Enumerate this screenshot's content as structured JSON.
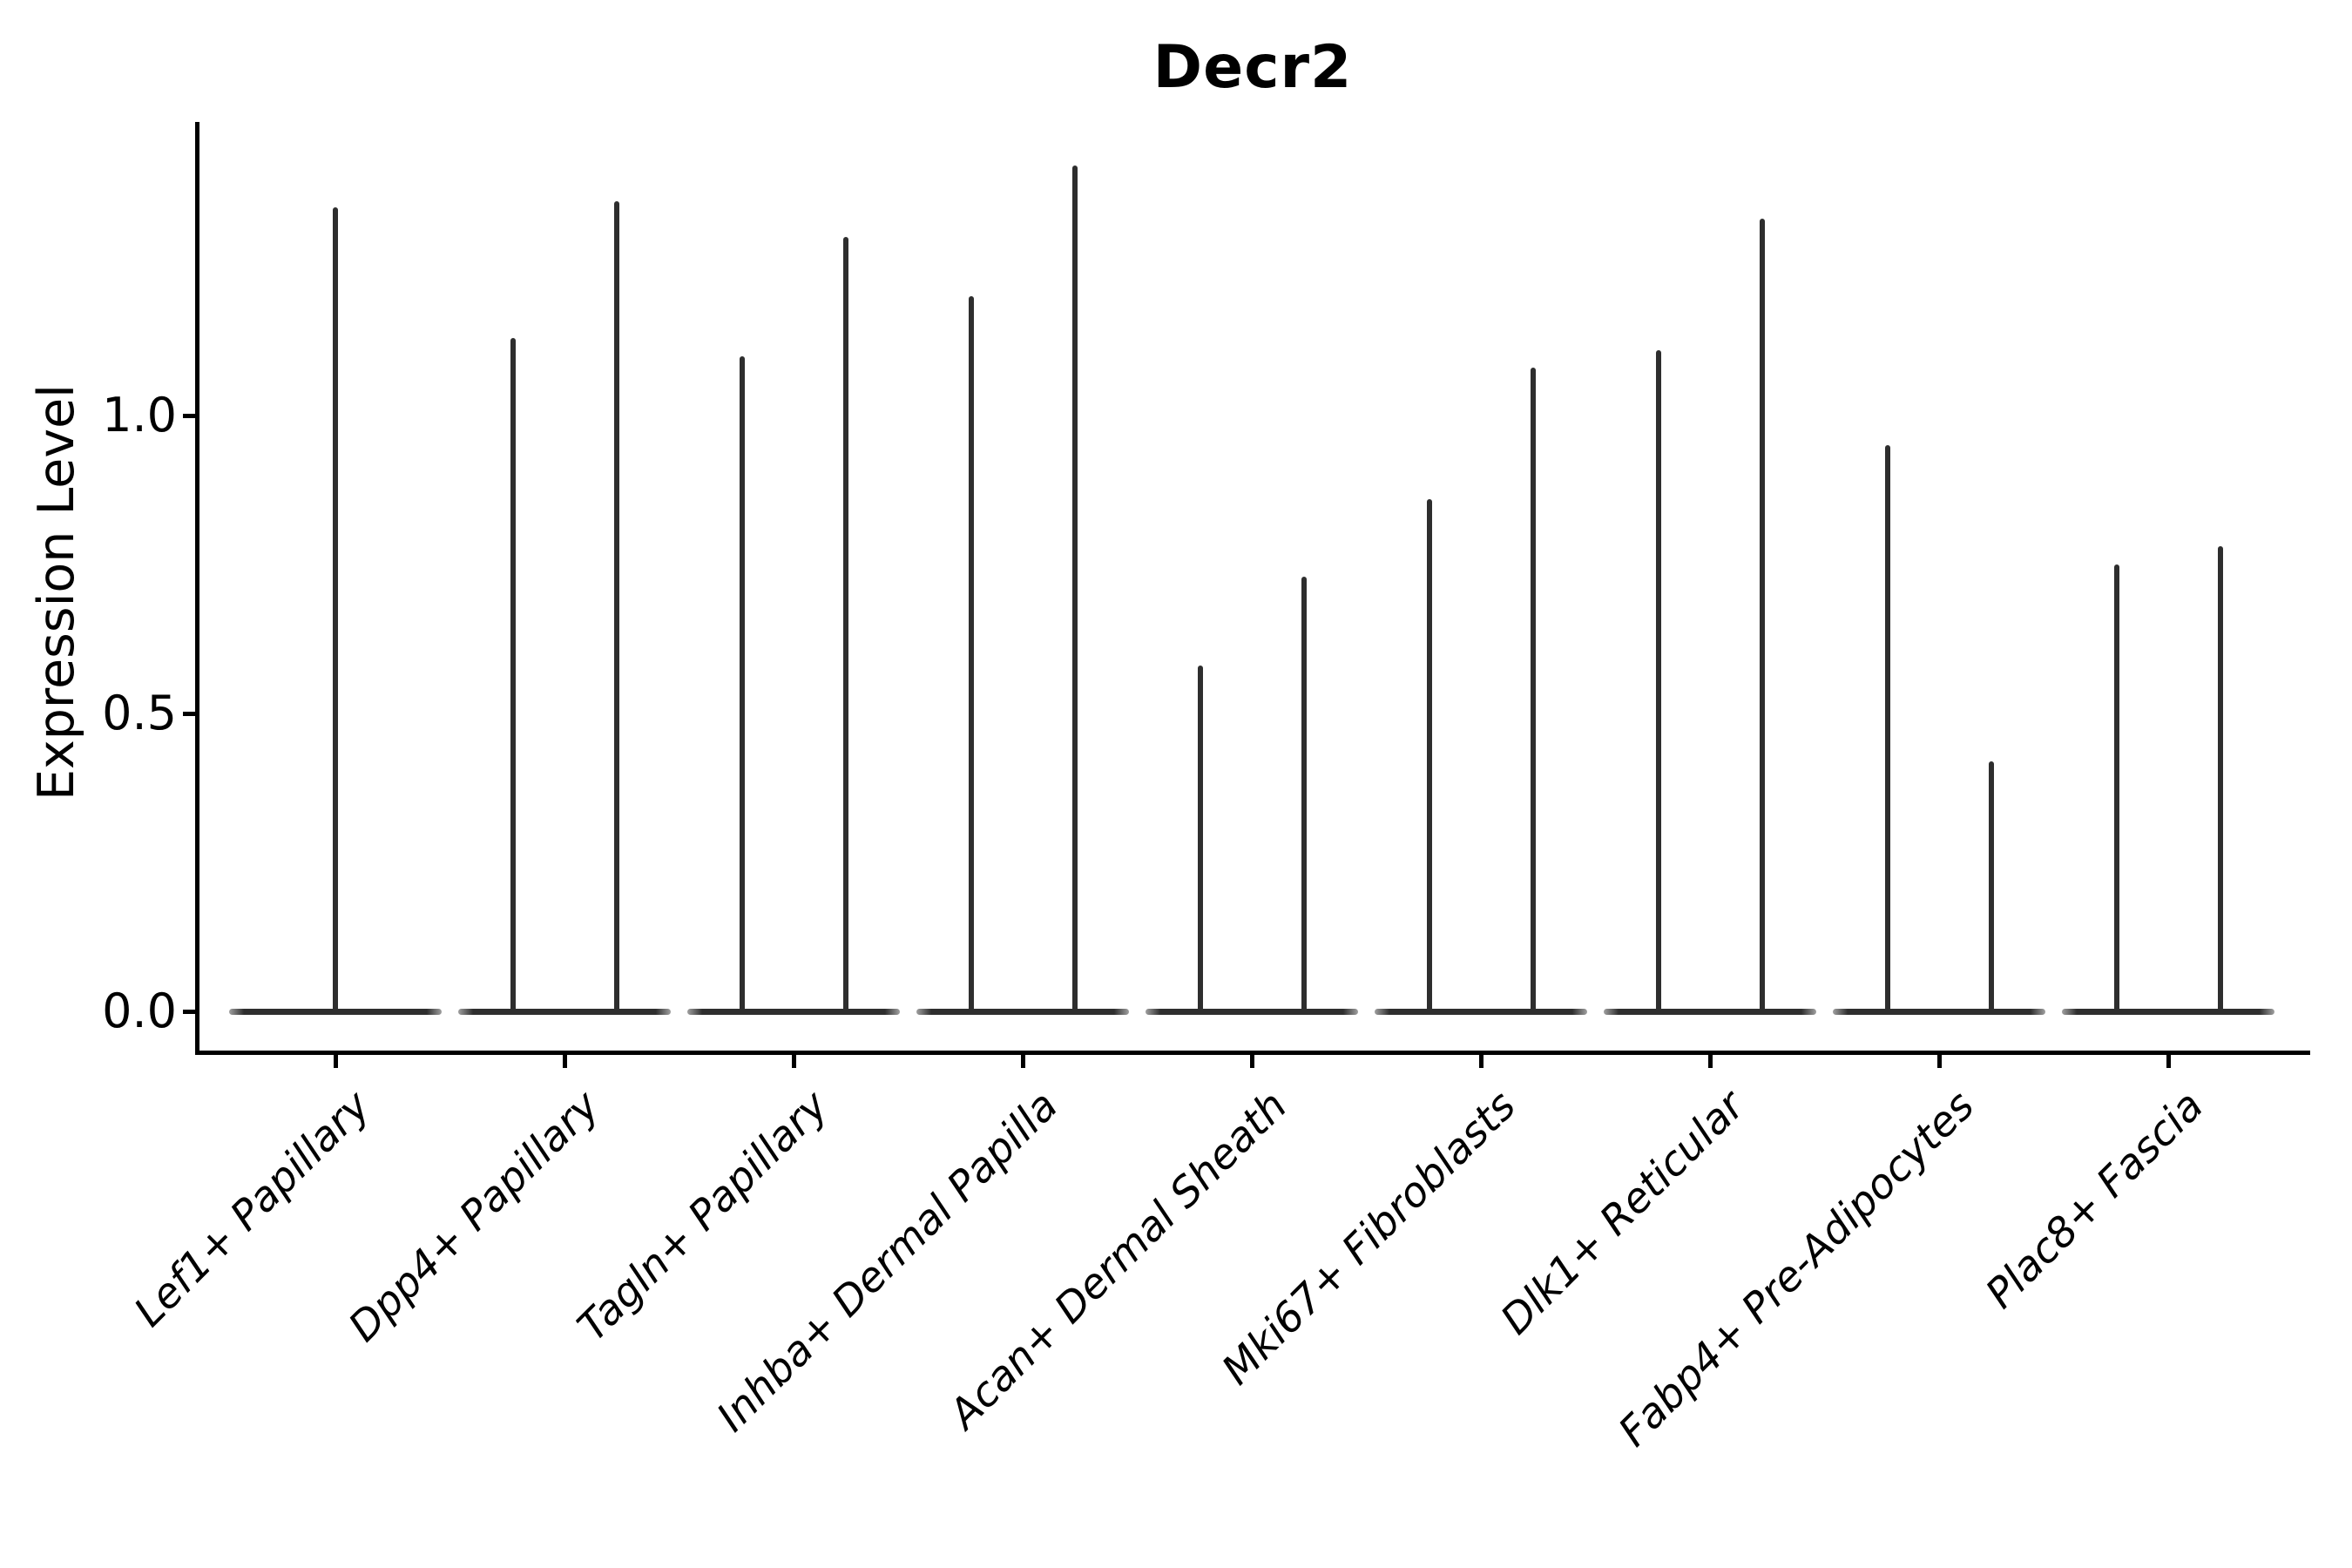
{
  "chart_data": {
    "type": "violin",
    "title": "Decr2",
    "ylabel": "Expression Level",
    "xlabel": "",
    "grid": false,
    "legend_position": "none",
    "ylim": [
      -0.07,
      1.49
    ],
    "yticks": {
      "values": [
        0.0,
        0.5,
        1.0
      ],
      "labels": [
        "0.0",
        "0.5",
        "1.0"
      ]
    },
    "categories": [
      "Lef1+ Papillary",
      "Dpp4+ Papillary",
      "Tagln+ Papillary",
      "Inhba+ Dermal Papilla",
      "Acan+ Dermal Sheath",
      "Mki67+ Fibroblasts",
      "Dlk1+ Reticular",
      "Fabp4+ Pre-Adipocytes",
      "Plac8+ Fascia"
    ],
    "violins": [
      {
        "category": "Lef1+ Papillary",
        "spikes": [
          {
            "pos": "center",
            "max_expression": 1.35
          }
        ]
      },
      {
        "category": "Dpp4+ Papillary",
        "spikes": [
          {
            "pos": "left",
            "max_expression": 1.13
          },
          {
            "pos": "right",
            "max_expression": 1.36
          }
        ]
      },
      {
        "category": "Tagln+ Papillary",
        "spikes": [
          {
            "pos": "left",
            "max_expression": 1.1
          },
          {
            "pos": "right",
            "max_expression": 1.3
          }
        ]
      },
      {
        "category": "Inhba+ Dermal Papilla",
        "spikes": [
          {
            "pos": "left",
            "max_expression": 1.2
          },
          {
            "pos": "right",
            "max_expression": 1.42
          }
        ]
      },
      {
        "category": "Acan+ Dermal Sheath",
        "spikes": [
          {
            "pos": "left",
            "max_expression": 0.58
          },
          {
            "pos": "right",
            "max_expression": 0.73
          }
        ]
      },
      {
        "category": "Mki67+ Fibroblasts",
        "spikes": [
          {
            "pos": "left",
            "max_expression": 0.86
          },
          {
            "pos": "right",
            "max_expression": 1.08
          }
        ]
      },
      {
        "category": "Dlk1+ Reticular",
        "spikes": [
          {
            "pos": "left",
            "max_expression": 1.11
          },
          {
            "pos": "right",
            "max_expression": 1.33
          }
        ]
      },
      {
        "category": "Fabp4+ Pre-Adipocytes",
        "spikes": [
          {
            "pos": "left",
            "max_expression": 0.95
          },
          {
            "pos": "right",
            "max_expression": 0.42
          }
        ]
      },
      {
        "category": "Plac8+ Fascia",
        "spikes": [
          {
            "pos": "left",
            "max_expression": 0.75
          },
          {
            "pos": "right",
            "max_expression": 0.78
          }
        ]
      }
    ],
    "style": {
      "violin_color": "#2e2e2e",
      "axis_color": "#000000",
      "background_color": "#ffffff"
    }
  }
}
